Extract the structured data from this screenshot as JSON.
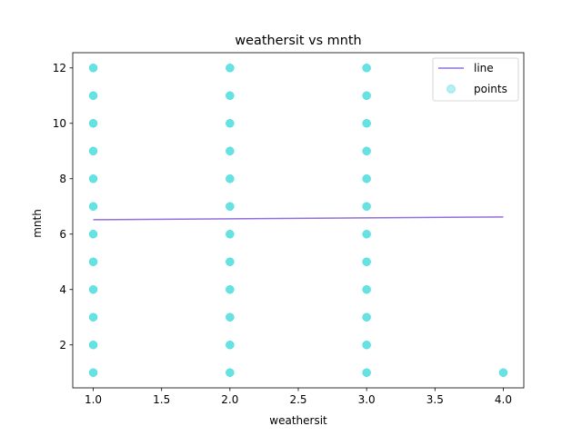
{
  "chart_data": {
    "type": "scatter",
    "title": "weathersit vs mnth",
    "xlabel": "weathersit",
    "ylabel": "mnth",
    "xlim": [
      0.85,
      4.15
    ],
    "ylim": [
      0.45,
      12.55
    ],
    "xticks": [
      "1.0",
      "1.5",
      "2.0",
      "2.5",
      "3.0",
      "3.5",
      "4.0"
    ],
    "xtick_values": [
      1.0,
      1.5,
      2.0,
      2.5,
      3.0,
      3.5,
      4.0
    ],
    "yticks": [
      "2",
      "4",
      "6",
      "8",
      "10",
      "12"
    ],
    "ytick_values": [
      2,
      4,
      6,
      8,
      10,
      12
    ],
    "grid": false,
    "legend_position": "top-right",
    "series": [
      {
        "name": "line",
        "kind": "line",
        "color": "#9370DB",
        "x": [
          1.0,
          4.0
        ],
        "y": [
          6.52,
          6.62
        ]
      },
      {
        "name": "points",
        "kind": "scatter",
        "color": "#00CED1",
        "x": [
          1,
          1,
          1,
          1,
          1,
          1,
          1,
          1,
          1,
          1,
          1,
          1,
          2,
          2,
          2,
          2,
          2,
          2,
          2,
          2,
          2,
          2,
          2,
          2,
          3,
          3,
          3,
          3,
          3,
          3,
          3,
          3,
          3,
          3,
          3,
          3,
          4
        ],
        "y": [
          1,
          2,
          3,
          4,
          5,
          6,
          7,
          8,
          9,
          10,
          11,
          12,
          1,
          2,
          3,
          4,
          5,
          6,
          7,
          8,
          9,
          10,
          11,
          12,
          1,
          2,
          3,
          4,
          5,
          6,
          7,
          8,
          9,
          10,
          11,
          12,
          1
        ]
      }
    ]
  }
}
